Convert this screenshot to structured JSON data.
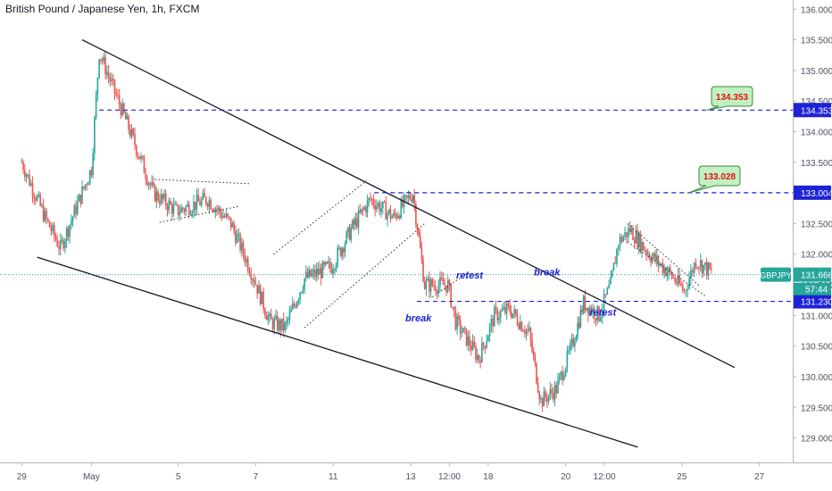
{
  "chart_data": {
    "type": "candlestick",
    "title": "British Pound / Japanese Yen, 1h, FXCM",
    "symbol": "GBPJPY",
    "last_price": "131.666",
    "countdown": "57:44",
    "y_axis": {
      "range": [
        128.6,
        136.15
      ],
      "ticks": [
        "129.000",
        "129.500",
        "130.000",
        "130.500",
        "131.000",
        "131.500",
        "132.000",
        "132.500",
        "133.000",
        "133.500",
        "134.000",
        "134.500",
        "135.000",
        "135.500",
        "136.000"
      ]
    },
    "x_axis": {
      "ticks": [
        {
          "label": "29",
          "x": 0
        },
        {
          "label": "May",
          "x": 0.9
        },
        {
          "label": "5",
          "x": 2.02
        },
        {
          "label": "7",
          "x": 3.02
        },
        {
          "label": "11",
          "x": 4.02
        },
        {
          "label": "13",
          "x": 5.02
        },
        {
          "label": "12:00",
          "x": 5.52
        },
        {
          "label": "18",
          "x": 6.02
        },
        {
          "label": "20",
          "x": 7.02
        },
        {
          "label": "12:00",
          "x": 7.52
        },
        {
          "label": "25",
          "x": 8.52
        },
        {
          "label": "27",
          "x": 9.52
        }
      ]
    },
    "horizontal_levels": [
      {
        "price": 134.353,
        "label": "134.353",
        "color": "#1e22d6"
      },
      {
        "price": 133.004,
        "label": "133.004",
        "color": "#1e22d6"
      },
      {
        "price": 131.23,
        "label": "131.230",
        "color": "#1e22d6"
      }
    ],
    "target_callouts": [
      {
        "label": "134.353",
        "color": "#c2f0c2",
        "text_color": "#e01010"
      },
      {
        "label": "133.028",
        "color": "#c2f0c2",
        "text_color": "#e01010"
      }
    ],
    "annotations": [
      {
        "text": "break",
        "x": 5.12,
        "y": 130.9
      },
      {
        "text": "retest",
        "x": 5.78,
        "y": 131.6
      },
      {
        "text": "break",
        "x": 6.78,
        "y": 131.65
      },
      {
        "text": "retest",
        "x": 7.5,
        "y": 131.0
      }
    ],
    "trendlines": [
      {
        "x1": 0.78,
        "y1": 135.5,
        "x2": 9.2,
        "y2": 130.15,
        "style": "solid"
      },
      {
        "x1": 0.2,
        "y1": 131.95,
        "x2": 7.95,
        "y2": 128.85,
        "style": "solid"
      },
      {
        "x1": 1.72,
        "y1": 133.22,
        "x2": 2.95,
        "y2": 133.15,
        "style": "dotted"
      },
      {
        "x1": 1.78,
        "y1": 132.52,
        "x2": 2.8,
        "y2": 132.78,
        "style": "dotted"
      },
      {
        "x1": 3.25,
        "y1": 132.0,
        "x2": 4.45,
        "y2": 133.2,
        "style": "dotted"
      },
      {
        "x1": 3.65,
        "y1": 130.8,
        "x2": 5.2,
        "y2": 132.5,
        "style": "dotted"
      },
      {
        "x1": 7.82,
        "y1": 132.5,
        "x2": 8.75,
        "y2": 131.48,
        "style": "dotted"
      },
      {
        "x1": 7.82,
        "y1": 132.2,
        "x2": 8.82,
        "y2": 131.32,
        "style": "dotted"
      },
      {
        "x1": 5.3,
        "y1": 131.3,
        "x2": 5.78,
        "y2": 131.72,
        "style": "dotted"
      }
    ],
    "candle_path": [
      [
        0,
        133.5
      ],
      [
        0.3,
        132.6
      ],
      [
        0.5,
        132.1
      ],
      [
        0.9,
        133.4
      ],
      [
        1.0,
        135.3
      ],
      [
        1.4,
        134.0
      ],
      [
        1.7,
        133.0
      ],
      [
        2.0,
        132.7
      ],
      [
        2.4,
        132.9
      ],
      [
        2.7,
        132.5
      ],
      [
        3.0,
        131.6
      ],
      [
        3.2,
        130.9
      ],
      [
        3.4,
        130.8
      ],
      [
        3.65,
        131.6
      ],
      [
        4.0,
        131.8
      ],
      [
        4.25,
        132.4
      ],
      [
        4.5,
        132.9
      ],
      [
        4.8,
        132.6
      ],
      [
        5.05,
        133.0
      ],
      [
        5.2,
        131.5
      ],
      [
        5.5,
        131.5
      ],
      [
        5.6,
        130.9
      ],
      [
        5.9,
        130.3
      ],
      [
        6.1,
        131.0
      ],
      [
        6.3,
        131.1
      ],
      [
        6.55,
        130.7
      ],
      [
        6.7,
        129.6
      ],
      [
        6.9,
        129.8
      ],
      [
        7.1,
        130.5
      ],
      [
        7.25,
        131.2
      ],
      [
        7.45,
        131.0
      ],
      [
        7.6,
        131.5
      ],
      [
        7.7,
        132.2
      ],
      [
        7.85,
        132.4
      ],
      [
        8.1,
        132.0
      ],
      [
        8.35,
        131.7
      ],
      [
        8.55,
        131.4
      ],
      [
        8.7,
        131.9
      ],
      [
        8.9,
        131.7
      ]
    ]
  }
}
